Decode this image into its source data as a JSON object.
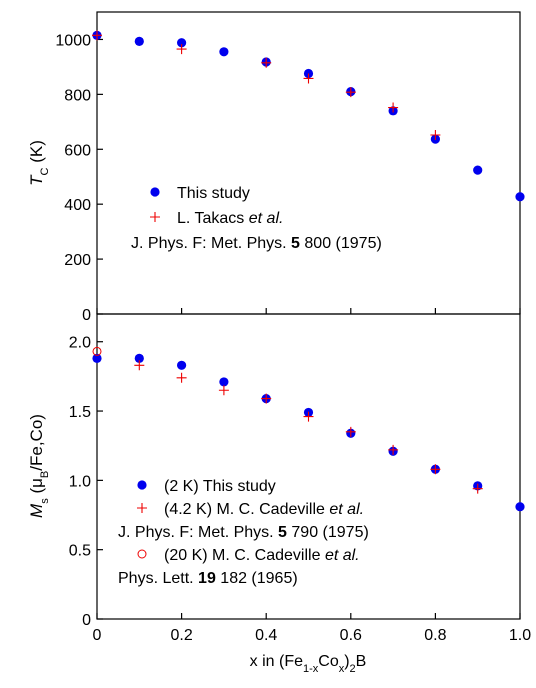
{
  "chart_data": [
    {
      "type": "scatter",
      "ylabel_main": "T",
      "ylabel_sub": "C",
      "ylabel_unit": " (K)",
      "xlim": [
        0,
        1.0
      ],
      "ylim": [
        0,
        1100
      ],
      "yticks": [
        0,
        200,
        400,
        600,
        800,
        1000
      ],
      "ytick_labels": [
        "0",
        "200",
        "400",
        "600",
        "800",
        "1000"
      ],
      "series": [
        {
          "name": "This study",
          "marker": "filled-circle",
          "color": "#0000ee",
          "x": [
            0.0,
            0.1,
            0.2,
            0.3,
            0.4,
            0.5,
            0.6,
            0.7,
            0.8,
            0.9,
            1.0
          ],
          "y": [
            1015,
            993,
            988,
            955,
            918,
            876,
            810,
            740,
            637,
            524,
            427
          ]
        },
        {
          "name": "L. Takacs et al.",
          "marker": "plus",
          "color": "#ee0000",
          "x": [
            0.0,
            0.2,
            0.4,
            0.5,
            0.6,
            0.7,
            0.8
          ],
          "y": [
            1015,
            965,
            915,
            858,
            808,
            752,
            652
          ]
        }
      ],
      "legend": [
        {
          "marker": "filled-circle",
          "color": "#0000ee",
          "parts": [
            {
              "t": "This study",
              "s": "n"
            }
          ]
        },
        {
          "marker": "plus",
          "color": "#ee0000",
          "parts": [
            {
              "t": "L. Takacs ",
              "s": "n"
            },
            {
              "t": "et al.",
              "s": "i"
            }
          ]
        },
        {
          "marker": "none",
          "parts": [
            {
              "t": "J. Phys. F: Met. Phys. ",
              "s": "n"
            },
            {
              "t": "5",
              "s": "b"
            },
            {
              "t": " 800 (1975)",
              "s": "n"
            }
          ]
        }
      ],
      "legend_position": "bottom-left"
    },
    {
      "type": "scatter",
      "ylabel_main": "M",
      "ylabel_sub": "s",
      "ylabel_mid": " (μ",
      "ylabel_sub2": "B",
      "ylabel_unit": "/Fe,Co)",
      "xlabel": "x in (Fe1-xCox)2B",
      "xlabel_parts": [
        {
          "t": "x in (Fe",
          "s": "n"
        },
        {
          "t": "1-x",
          "s": "sub"
        },
        {
          "t": "Co",
          "s": "n"
        },
        {
          "t": "x",
          "s": "sub"
        },
        {
          "t": ")",
          "s": "n"
        },
        {
          "t": "2",
          "s": "sub"
        },
        {
          "t": "B",
          "s": "n"
        }
      ],
      "xlim": [
        0,
        1.0
      ],
      "ylim": [
        0,
        2.2
      ],
      "xticks": [
        0,
        0.2,
        0.4,
        0.6,
        0.8,
        1.0
      ],
      "xtick_labels": [
        "0",
        "0.2",
        "0.4",
        "0.6",
        "0.8",
        "1.0"
      ],
      "yticks": [
        0,
        0.5,
        1.0,
        1.5,
        2.0
      ],
      "ytick_labels": [
        "0",
        "0.5",
        "1.0",
        "1.5",
        "2.0"
      ],
      "series": [
        {
          "name": "(2 K) This study",
          "marker": "filled-circle",
          "color": "#0000ee",
          "x": [
            0.0,
            0.1,
            0.2,
            0.3,
            0.4,
            0.5,
            0.6,
            0.7,
            0.8,
            0.9,
            1.0
          ],
          "y": [
            1.88,
            1.88,
            1.83,
            1.71,
            1.59,
            1.49,
            1.34,
            1.21,
            1.08,
            0.96,
            0.81
          ]
        },
        {
          "name": "(4.2 K) M. C. Cadeville et al.",
          "marker": "plus",
          "color": "#ee0000",
          "x": [
            0.1,
            0.2,
            0.3,
            0.4,
            0.5,
            0.6,
            0.7,
            0.8,
            0.9
          ],
          "y": [
            1.83,
            1.74,
            1.65,
            1.59,
            1.46,
            1.35,
            1.22,
            1.08,
            0.94
          ]
        },
        {
          "name": "(20 K) M. C. Cadeville et al.",
          "marker": "open-circle",
          "color": "#ee0000",
          "x": [
            0.0
          ],
          "y": [
            1.93
          ]
        }
      ],
      "legend": [
        {
          "marker": "filled-circle",
          "color": "#0000ee",
          "parts": [
            {
              "t": "(2 K) This study",
              "s": "n"
            }
          ]
        },
        {
          "marker": "plus",
          "color": "#ee0000",
          "parts": [
            {
              "t": "(4.2 K) M. C. Cadeville ",
              "s": "n"
            },
            {
              "t": "et al.",
              "s": "i"
            }
          ]
        },
        {
          "marker": "none",
          "parts": [
            {
              "t": "J. Phys. F: Met. Phys. ",
              "s": "n"
            },
            {
              "t": "5",
              "s": "b"
            },
            {
              "t": " 790 (1975)",
              "s": "n"
            }
          ]
        },
        {
          "marker": "open-circle",
          "color": "#ee0000",
          "parts": [
            {
              "t": "(20 K) M. C. Cadeville ",
              "s": "n"
            },
            {
              "t": "et al.",
              "s": "i"
            }
          ]
        },
        {
          "marker": "none",
          "parts": [
            {
              "t": "Phys. Lett. ",
              "s": "n"
            },
            {
              "t": "19",
              "s": "b"
            },
            {
              "t": " 182 (1965)",
              "s": "n"
            }
          ]
        }
      ],
      "legend_position": "bottom-left"
    }
  ]
}
